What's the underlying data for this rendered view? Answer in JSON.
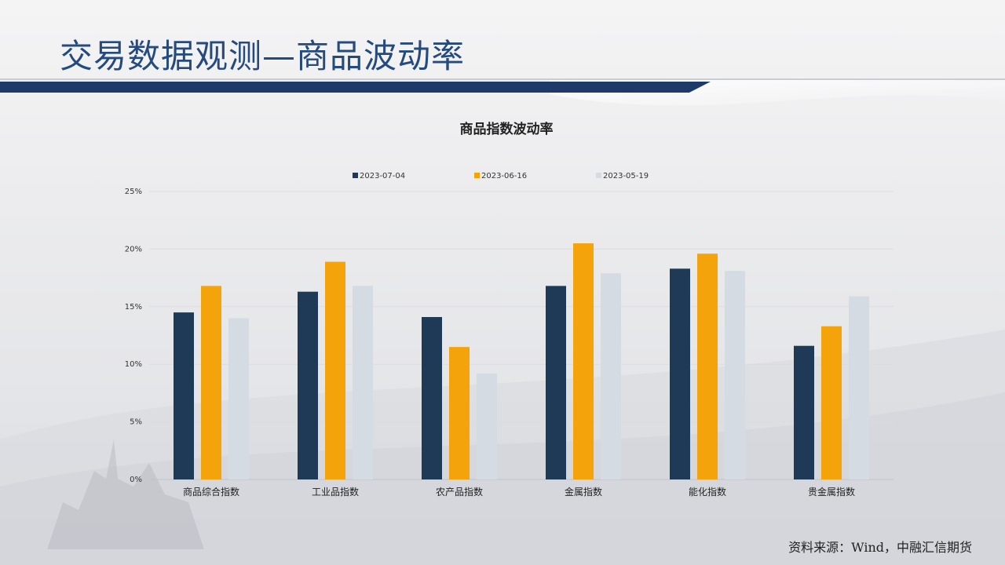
{
  "page": {
    "title": "交易数据观测—商品波动率",
    "source": "资料来源：Wind，中融汇信期货"
  },
  "colors": {
    "header_bar": "#1d3a68",
    "title_text": "#254a7d"
  },
  "chart_data": {
    "type": "bar",
    "title": "商品指数波动率",
    "xlabel": "",
    "ylabel": "",
    "ylim": [
      0,
      25
    ],
    "yticks": [
      0,
      5,
      10,
      15,
      20,
      25
    ],
    "ytick_labels": [
      "0%",
      "5%",
      "10%",
      "15%",
      "20%",
      "25%"
    ],
    "grid": true,
    "legend_position": "top",
    "categories": [
      "商品综合指数",
      "工业品指数",
      "农产品指数",
      "金属指数",
      "能化指数",
      "贵金属指数"
    ],
    "series": [
      {
        "name": "2023-07-04",
        "color": "#1f3a56",
        "values": [
          14.5,
          16.3,
          14.1,
          16.8,
          18.3,
          11.6
        ]
      },
      {
        "name": "2023-06-16",
        "color": "#f5a30a",
        "values": [
          16.8,
          18.9,
          11.5,
          20.5,
          19.6,
          13.3
        ]
      },
      {
        "name": "2023-05-19",
        "color": "#d5dbe3",
        "values": [
          14.0,
          16.8,
          9.2,
          17.9,
          18.1,
          15.9
        ]
      }
    ]
  }
}
